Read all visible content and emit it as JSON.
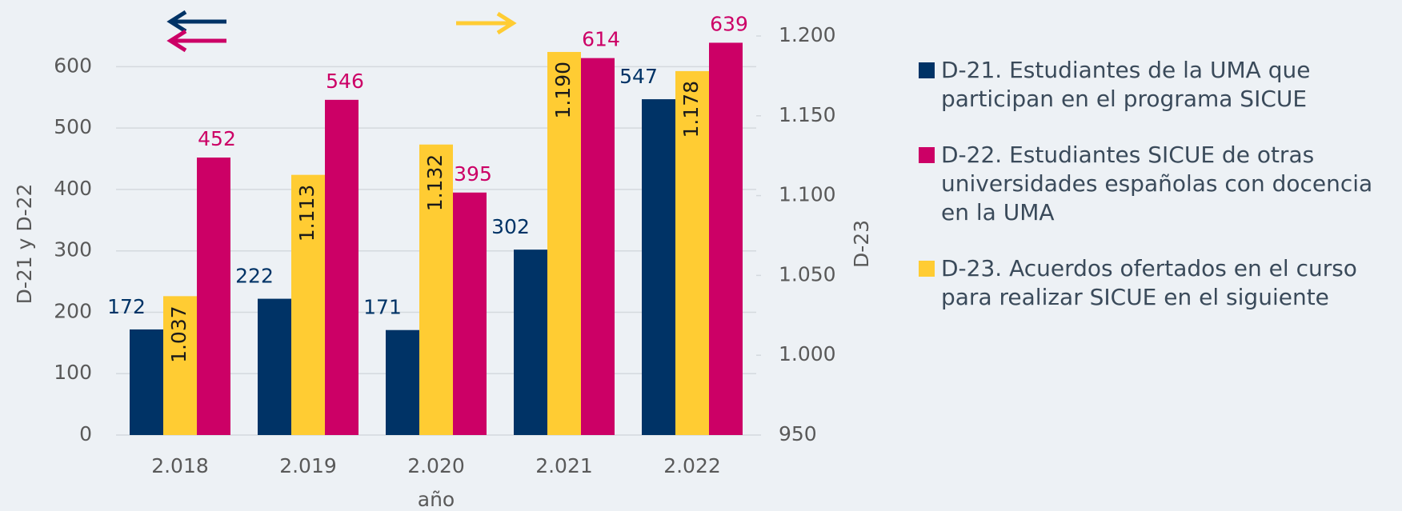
{
  "chart_data": {
    "type": "bar",
    "categories": [
      "2.018",
      "2.019",
      "2.020",
      "2.021",
      "2.022"
    ],
    "x_label": "año",
    "y_label": "D-21 y D-22",
    "y2_label": "D-23",
    "series": [
      {
        "name": "D-21. Estudiantes de la UMA que participan en el programa SICUE",
        "color": "#003366",
        "values": [
          172,
          222,
          171,
          302,
          547
        ]
      },
      {
        "name": "D-22. Estudiantes SICUE de otras universidades españolas con docencia en la UMA",
        "color": "#cc0066",
        "values": [
          452,
          546,
          395,
          614,
          639
        ]
      },
      {
        "name": "D-23. Acuerdos ofertados en el curso para realizar SICUE en el siguiente",
        "color": "#ffcc33",
        "axis": "y2",
        "values": [
          1037,
          1113,
          1132,
          1190,
          1178
        ],
        "value_labels": [
          "1.037",
          "1.113",
          "1.132",
          "1.190",
          "1.178"
        ]
      }
    ],
    "ylim": [
      0,
      650
    ],
    "yticks": [
      0,
      100,
      200,
      300,
      400,
      500,
      600
    ],
    "y2lim": [
      950,
      1200
    ],
    "y2ticks": [
      950,
      {
        "value": 1000,
        "label": "1.000"
      },
      {
        "value": 1050,
        "label": "1.050"
      },
      {
        "value": 1100,
        "label": "1.100"
      },
      {
        "value": 1150,
        "label": "1.150"
      },
      {
        "value": 1200,
        "label": "1.200"
      }
    ],
    "grid": true,
    "legend": "right"
  }
}
